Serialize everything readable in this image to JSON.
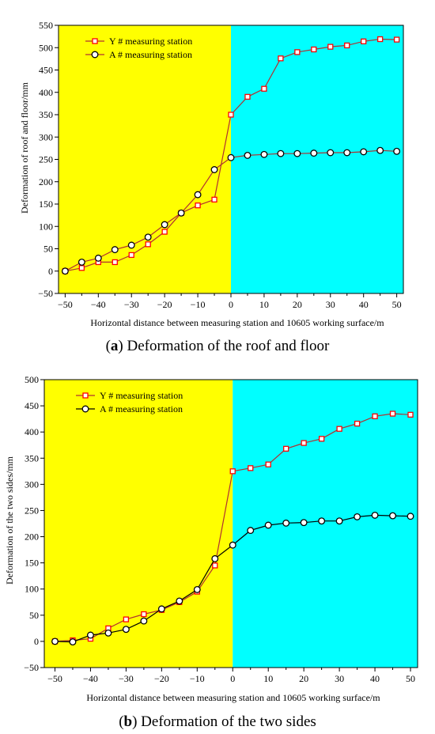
{
  "chart_data": [
    {
      "type": "line",
      "panel_letter": "a",
      "caption_open": "(",
      "caption_close": ")",
      "caption_text": " Deformation of the roof and floor",
      "xlabel": "Horizontal distance between measuring station and 10605 working surface/m",
      "ylabel": "Deformation of roof and floor/mm",
      "xlim": [
        -52,
        52
      ],
      "ylim": [
        -50,
        550
      ],
      "xticks": [
        -50,
        -40,
        -30,
        -20,
        -10,
        0,
        10,
        20,
        30,
        40,
        50
      ],
      "yticks": [
        -50,
        0,
        50,
        100,
        150,
        200,
        250,
        300,
        350,
        400,
        450,
        500,
        550
      ],
      "regions": [
        {
          "from": -52,
          "to": 0,
          "color": "#ffff00"
        },
        {
          "from": 0,
          "to": 52,
          "color": "#00ffff"
        }
      ],
      "legend_position": "top-left",
      "series": [
        {
          "name": "Y # measuring station",
          "marker": "square",
          "color": "#ff0000",
          "line_color": "#b03030",
          "x": [
            -50,
            -45,
            -40,
            -35,
            -30,
            -25,
            -20,
            -15,
            -10,
            -5,
            0,
            5,
            10,
            15,
            20,
            25,
            30,
            35,
            40,
            45,
            50
          ],
          "y": [
            0,
            7,
            20,
            20,
            36,
            60,
            88,
            130,
            147,
            160,
            350,
            390,
            408,
            476,
            490,
            496,
            502,
            505,
            514,
            519,
            518
          ]
        },
        {
          "name": "A # measuring station",
          "marker": "circle",
          "color": "#000000",
          "line_color": "#b03030",
          "x": [
            -50,
            -45,
            -40,
            -35,
            -30,
            -25,
            -20,
            -15,
            -10,
            -5,
            0,
            5,
            10,
            15,
            20,
            25,
            30,
            35,
            40,
            45,
            50
          ],
          "y": [
            0,
            20,
            29,
            48,
            58,
            76,
            104,
            130,
            171,
            227,
            254,
            259,
            261,
            263,
            263,
            264,
            265,
            265,
            267,
            270,
            268
          ]
        }
      ]
    },
    {
      "type": "line",
      "panel_letter": "b",
      "caption_open": "(",
      "caption_close": ")",
      "caption_text": " Deformation of the two sides",
      "xlabel": "Horizontal distance between measuring station and 10605 working surface/m",
      "ylabel": "Deformation of the two sides/mm",
      "xlim": [
        -53,
        52
      ],
      "ylim": [
        -50,
        500
      ],
      "xticks": [
        -50,
        -40,
        -30,
        -20,
        -10,
        0,
        10,
        20,
        30,
        40,
        50
      ],
      "yticks": [
        -50,
        0,
        50,
        100,
        150,
        200,
        250,
        300,
        350,
        400,
        450,
        500
      ],
      "regions": [
        {
          "from": -53,
          "to": 0,
          "color": "#ffff00"
        },
        {
          "from": 0,
          "to": 52,
          "color": "#00ffff"
        }
      ],
      "legend_position": "top-left",
      "series": [
        {
          "name": "Y # measuring station",
          "marker": "square",
          "color": "#ff0000",
          "line_color": "#b03030",
          "x": [
            -50,
            -45,
            -40,
            -35,
            -30,
            -25,
            -20,
            -15,
            -10,
            -5,
            0,
            5,
            10,
            15,
            20,
            25,
            30,
            35,
            40,
            45,
            50
          ],
          "y": [
            0,
            2,
            5,
            25,
            42,
            52,
            60,
            75,
            95,
            145,
            325,
            331,
            338,
            368,
            379,
            387,
            406,
            416,
            430,
            435,
            433
          ]
        },
        {
          "name": "A # measuring station",
          "marker": "circle",
          "color": "#000000",
          "line_color": "#000000",
          "x": [
            -50,
            -45,
            -40,
            -35,
            -30,
            -25,
            -20,
            -15,
            -10,
            -5,
            0,
            5,
            10,
            15,
            20,
            25,
            30,
            35,
            40,
            45,
            50
          ],
          "y": [
            0,
            -1,
            12,
            16,
            23,
            39,
            62,
            77,
            99,
            158,
            184,
            212,
            222,
            226,
            227,
            230,
            230,
            238,
            241,
            240,
            239
          ]
        }
      ]
    }
  ]
}
